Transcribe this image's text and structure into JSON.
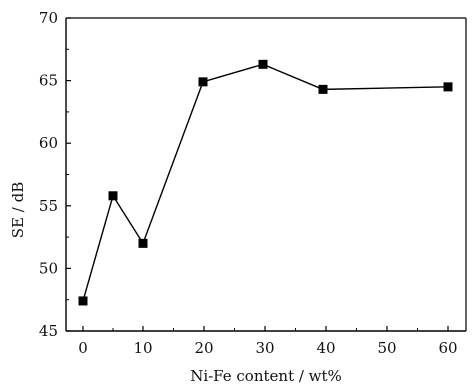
{
  "chart_data": {
    "type": "line",
    "xlabel": "Ni-Fe content / wt%",
    "ylabel": "SE / dB",
    "x_ticks": [
      "0",
      "10",
      "20",
      "30",
      "40",
      "50",
      "60"
    ],
    "y_ticks": [
      "45",
      "50",
      "55",
      "60",
      "65",
      "70"
    ],
    "xlim": [
      0,
      60
    ],
    "ylim": [
      45,
      70
    ],
    "grid": false,
    "legend": "none",
    "marker": "square",
    "line_color": "#000000",
    "x_axis_note": "x-axis tick 50 is at the position of 48.75 data units (nonlinear spacing between 40 and 60 as drawn); ticks are evenly spaced",
    "series": [
      {
        "x": [
          "0",
          "5",
          "10",
          "20",
          "30",
          "40",
          "60"
        ],
        "y": [
          47.4,
          55.8,
          52.0,
          64.9,
          66.3,
          64.3,
          64.5
        ]
      }
    ]
  }
}
